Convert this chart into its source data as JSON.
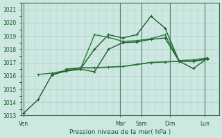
{
  "title": "",
  "xlabel": "Pression niveau de la mer( hPa )",
  "bg_color": "#cce8e0",
  "grid_major_color": "#aacfca",
  "grid_minor_color": "#c0ddd8",
  "vline_color": "#5a7a70",
  "line_colors": [
    "#1a5c2a",
    "#2a7a3a",
    "#1a5c2a",
    "#2d6e3a"
  ],
  "ylim": [
    1013,
    1021.5
  ],
  "yticks": [
    1013,
    1014,
    1015,
    1016,
    1017,
    1018,
    1019,
    1020,
    1021
  ],
  "xlim": [
    0,
    168
  ],
  "day_labels": [
    "Ven",
    "Mar",
    "Sam",
    "Dim",
    "Lun"
  ],
  "day_x": [
    2,
    84,
    102,
    126,
    156
  ],
  "vline_x": [
    2,
    84,
    102,
    126,
    156
  ],
  "series": [
    {
      "x": [
        2,
        14,
        26,
        38,
        50,
        62,
        74,
        86,
        98,
        110,
        122,
        134,
        146,
        158
      ],
      "y": [
        1013.2,
        1014.2,
        1016.1,
        1016.35,
        1016.5,
        1018.0,
        1019.1,
        1018.85,
        1019.1,
        1020.5,
        1019.6,
        1017.1,
        1016.55,
        1017.3
      ],
      "color": "#1a5c2a",
      "lw": 1.0
    },
    {
      "x": [
        14,
        26,
        38,
        50,
        62,
        74,
        86,
        98,
        110,
        122,
        134,
        146,
        158
      ],
      "y": [
        1016.1,
        1016.2,
        1016.4,
        1016.5,
        1019.1,
        1018.9,
        1018.6,
        1018.65,
        1018.8,
        1019.1,
        1017.15,
        1017.2,
        1017.35
      ],
      "color": "#2a7a3a",
      "lw": 1.0
    },
    {
      "x": [
        26,
        38,
        50,
        62,
        74,
        86,
        98,
        110,
        122,
        134,
        146,
        158
      ],
      "y": [
        1016.05,
        1016.4,
        1016.5,
        1016.3,
        1018.0,
        1018.5,
        1018.55,
        1018.75,
        1018.85,
        1017.1,
        1017.1,
        1017.3
      ],
      "color": "#1a5c2a",
      "lw": 1.0
    },
    {
      "x": [
        38,
        50,
        62,
        74,
        86,
        98,
        110,
        122,
        134,
        146,
        158
      ],
      "y": [
        1016.5,
        1016.6,
        1016.6,
        1016.65,
        1016.7,
        1016.85,
        1017.0,
        1017.05,
        1017.1,
        1017.1,
        1017.25
      ],
      "color": "#2d6e3a",
      "lw": 1.3
    }
  ]
}
